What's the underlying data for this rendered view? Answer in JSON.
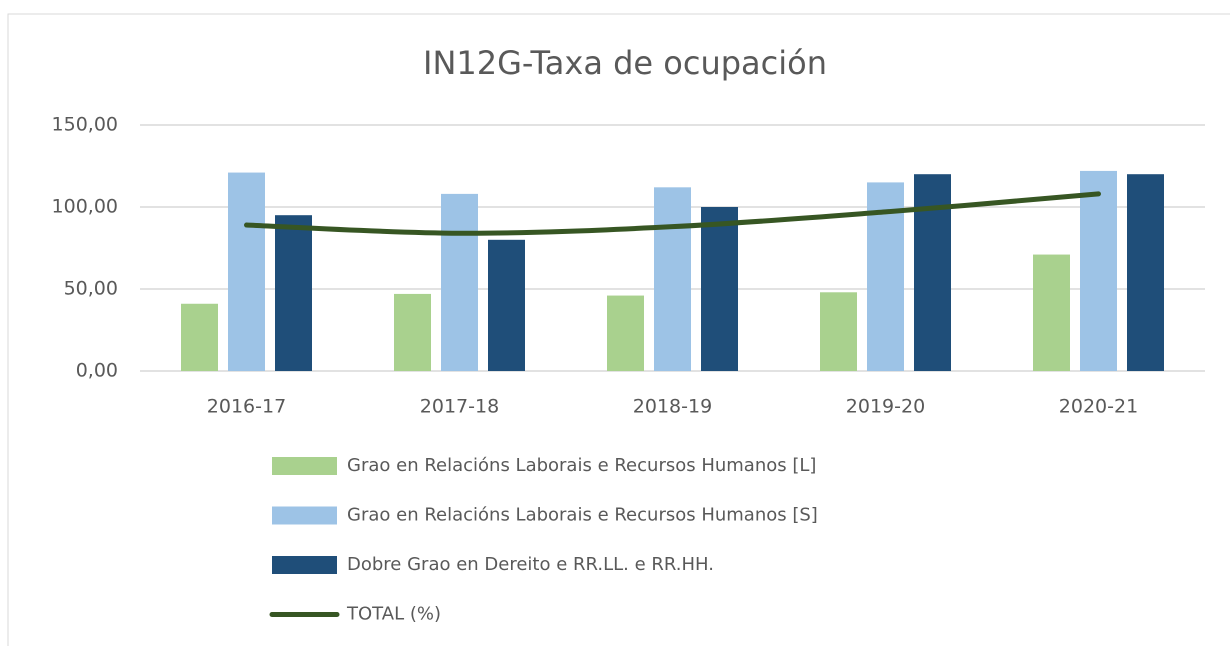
{
  "chart_data": {
    "type": "bar_line",
    "title": "IN12G-Taxa de ocupación",
    "categories": [
      "2016-17",
      "2017-18",
      "2018-19",
      "2019-20",
      "2020-21"
    ],
    "series": [
      {
        "name": "Grao en Relacións Laborais e Recursos Humanos [L]",
        "type": "bar",
        "color": "#a9d18e",
        "values": [
          41,
          47,
          46,
          48,
          71
        ]
      },
      {
        "name": "Grao en Relacións Laborais e Recursos Humanos [S]",
        "type": "bar",
        "color": "#9dc3e6",
        "values": [
          121,
          108,
          112,
          115,
          122
        ]
      },
      {
        "name": "Dobre Grao en Dereito e RR.LL. e RR.HH.",
        "type": "bar",
        "color": "#1f4e79",
        "values": [
          95,
          80,
          100,
          120,
          120
        ]
      },
      {
        "name": "TOTAL (%)",
        "type": "line",
        "color": "#375623",
        "values": [
          89,
          84,
          88,
          97,
          108
        ]
      }
    ],
    "ylim": [
      0,
      150
    ],
    "yticks": [
      {
        "value": 0,
        "label": "0,00"
      },
      {
        "value": 50,
        "label": "50,00"
      },
      {
        "value": 100,
        "label": "100,00"
      },
      {
        "value": 150,
        "label": "150,00"
      }
    ],
    "grid": true,
    "legend": "bottom"
  }
}
